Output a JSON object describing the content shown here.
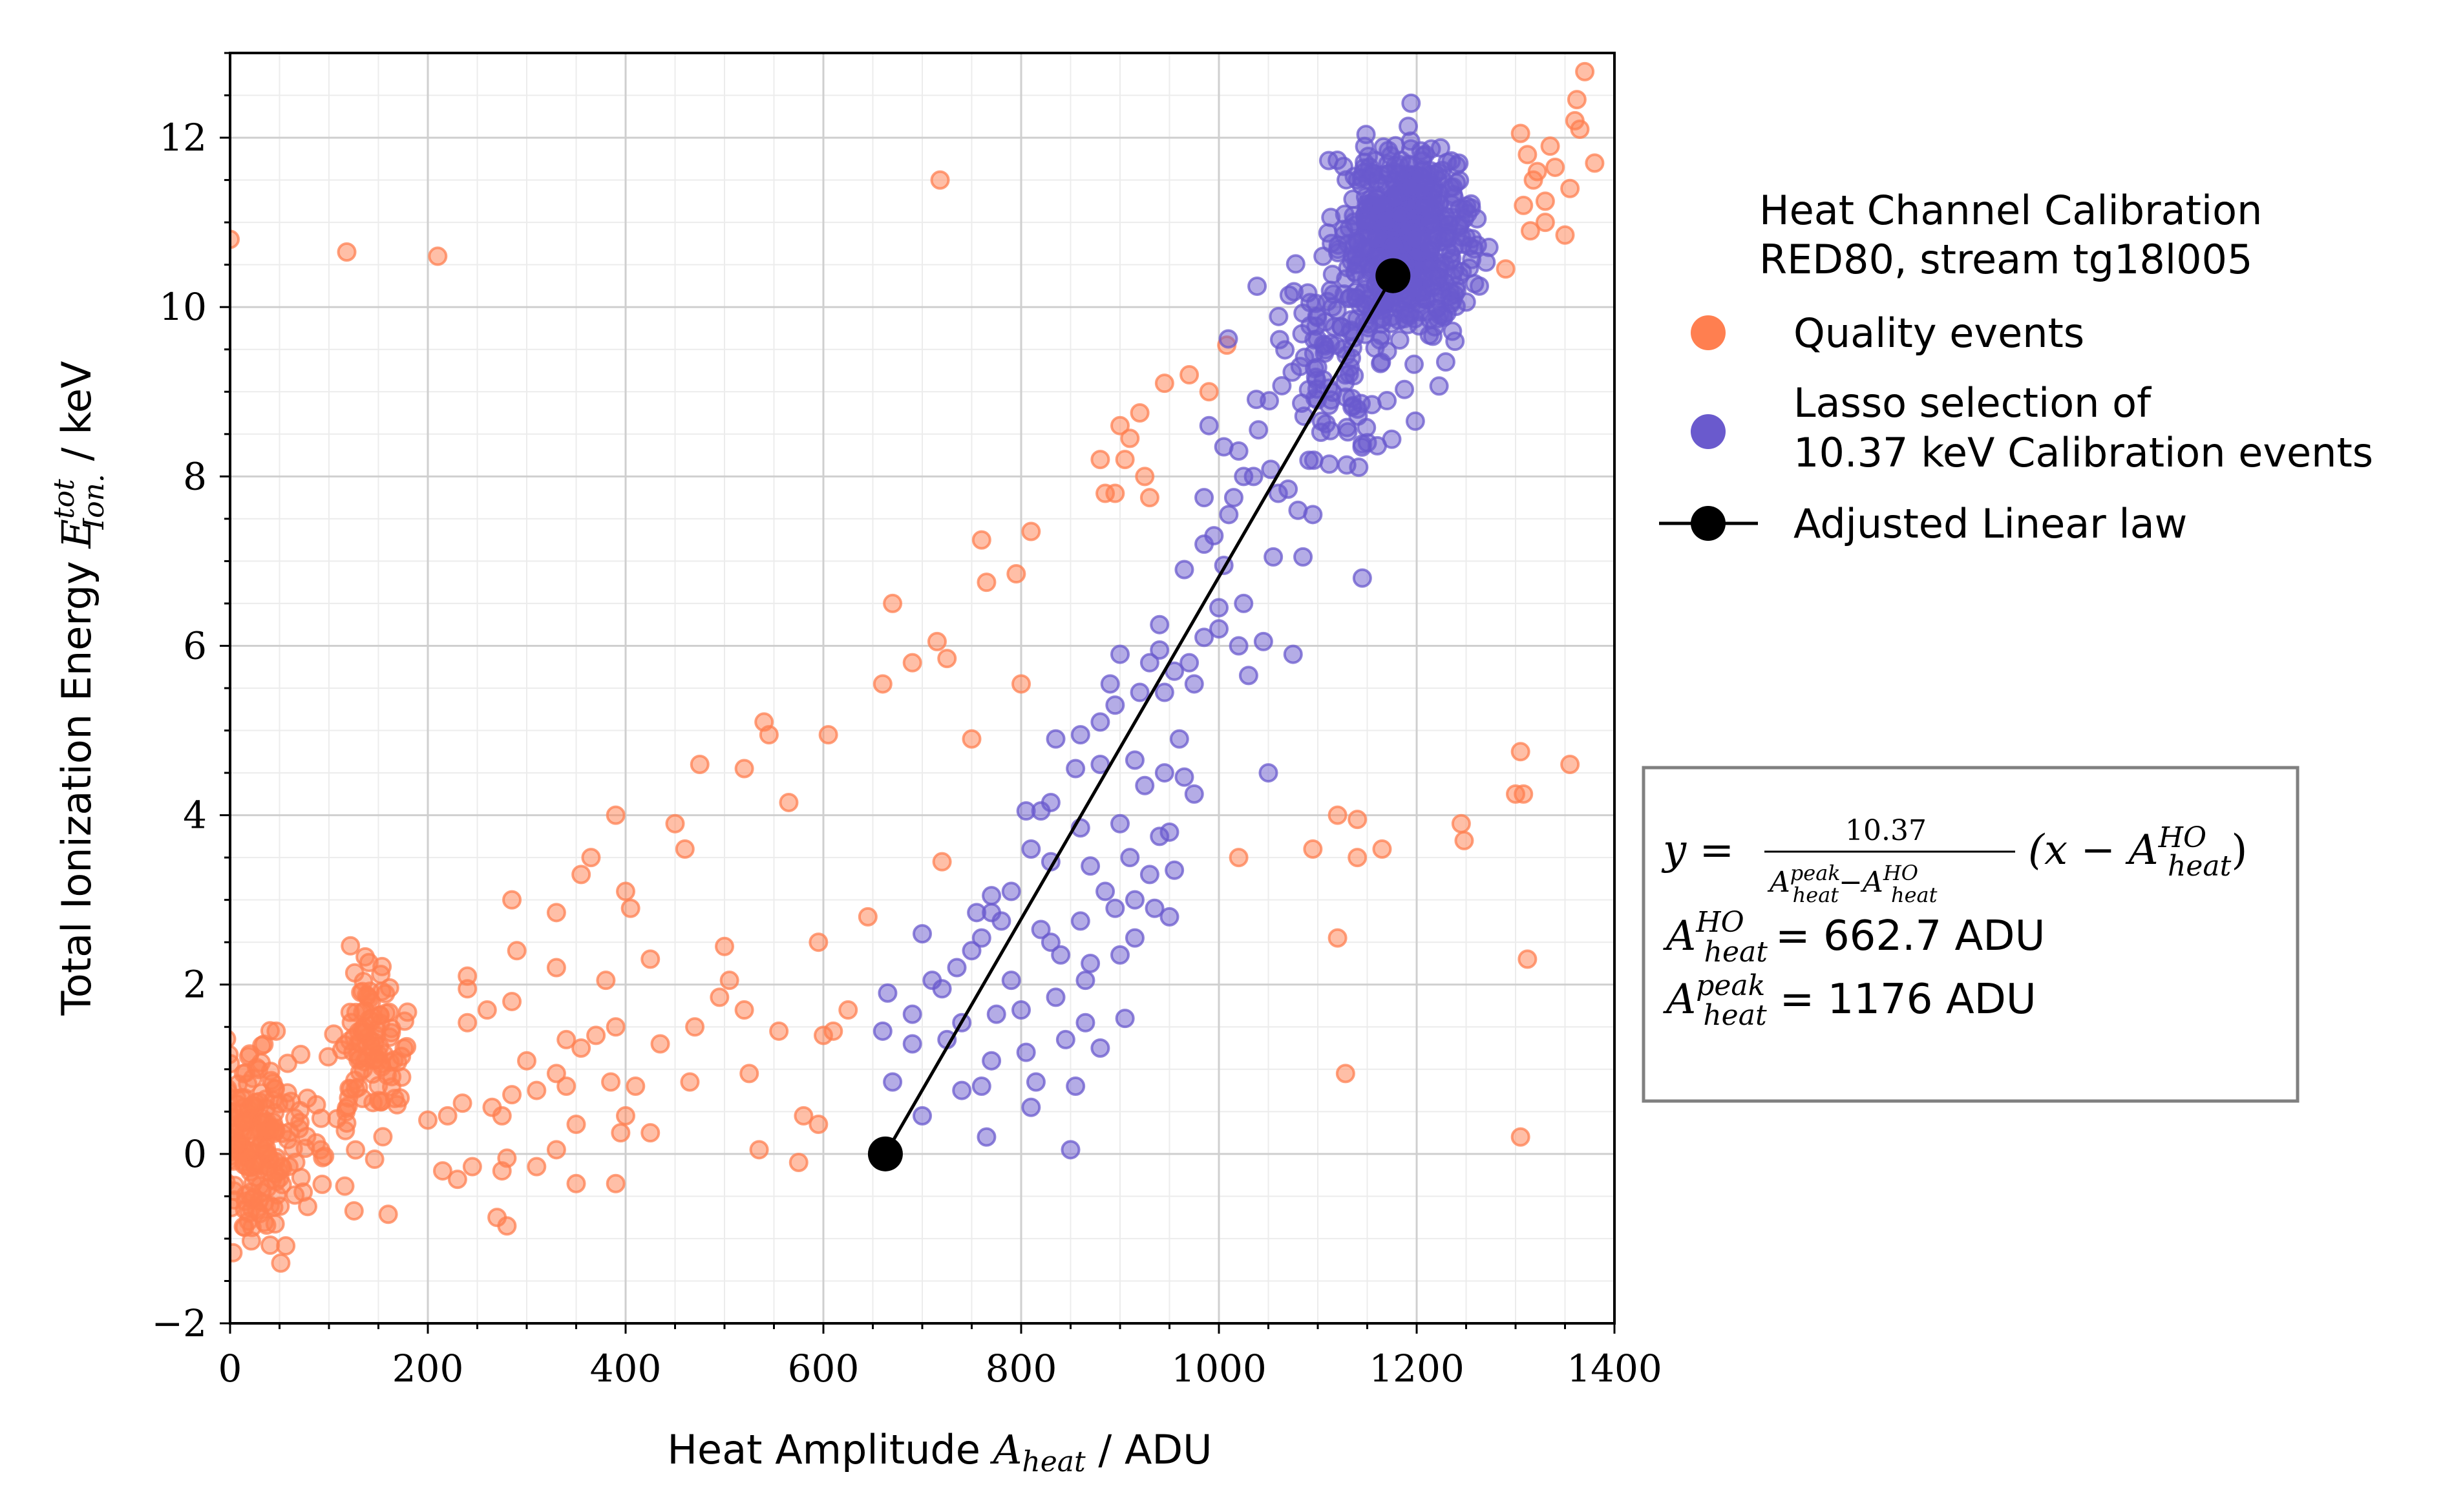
{
  "chart_data": {
    "type": "scatter",
    "xlabel": "Heat Amplitude A_heat / ADU",
    "ylabel": "Total Ionization Energy E^tot_Ion. / keV",
    "xlim": [
      0,
      1400
    ],
    "ylim": [
      -2,
      13
    ],
    "x_ticks": [
      "0",
      "200",
      "400",
      "600",
      "800",
      "1000",
      "1200",
      "1400"
    ],
    "y_ticks": [
      "−2",
      "0",
      "2",
      "4",
      "6",
      "8",
      "10",
      "12"
    ],
    "grid": "major and minor",
    "legend": {
      "title_line1": "Heat Channel Calibration",
      "title_line2": "RED80, stream tg18l005",
      "placement": "right"
    },
    "series": [
      {
        "name": "Quality events",
        "color": "#ff7f50",
        "clusters": [
          {
            "x_center": 25,
            "y_center": 0.1,
            "x_spread": 20,
            "y_spread": 0.55,
            "n": 170
          },
          {
            "x_center": 145,
            "y_center": 1.3,
            "x_spread": 16,
            "y_spread": 0.45,
            "n": 95
          },
          {
            "x_center": 75,
            "y_center": 0.2,
            "x_spread": 40,
            "y_spread": 0.45,
            "n": 45
          }
        ],
        "points": [
          [
            0,
            10.8
          ],
          [
            118,
            10.65
          ],
          [
            210,
            10.6
          ],
          [
            718,
            11.5
          ],
          [
            1305,
            12.05
          ],
          [
            1312,
            11.8
          ],
          [
            1318,
            11.5
          ],
          [
            1322,
            11.6
          ],
          [
            1308,
            11.2
          ],
          [
            1315,
            10.9
          ],
          [
            1330,
            11.0
          ],
          [
            1335,
            11.9
          ],
          [
            1340,
            11.65
          ],
          [
            1350,
            10.85
          ],
          [
            1355,
            11.4
          ],
          [
            1360,
            12.2
          ],
          [
            1365,
            12.1
          ],
          [
            1370,
            12.78
          ],
          [
            1362,
            12.45
          ],
          [
            1380,
            11.7
          ],
          [
            1290,
            10.45
          ],
          [
            1008,
            9.55
          ],
          [
            970,
            9.2
          ],
          [
            990,
            9.0
          ],
          [
            945,
            9.1
          ],
          [
            920,
            8.75
          ],
          [
            900,
            8.6
          ],
          [
            910,
            8.45
          ],
          [
            880,
            8.2
          ],
          [
            905,
            8.2
          ],
          [
            925,
            8.0
          ],
          [
            895,
            7.8
          ],
          [
            930,
            7.75
          ],
          [
            885,
            7.8
          ],
          [
            810,
            7.35
          ],
          [
            760,
            7.25
          ],
          [
            765,
            6.75
          ],
          [
            795,
            6.85
          ],
          [
            670,
            6.5
          ],
          [
            715,
            6.05
          ],
          [
            690,
            5.8
          ],
          [
            725,
            5.85
          ],
          [
            660,
            5.55
          ],
          [
            800,
            5.55
          ],
          [
            750,
            4.9
          ],
          [
            540,
            5.1
          ],
          [
            545,
            4.95
          ],
          [
            605,
            4.95
          ],
          [
            475,
            4.6
          ],
          [
            520,
            4.55
          ],
          [
            565,
            4.15
          ],
          [
            390,
            4.0
          ],
          [
            450,
            3.9
          ],
          [
            460,
            3.6
          ],
          [
            720,
            3.45
          ],
          [
            365,
            3.5
          ],
          [
            355,
            3.3
          ],
          [
            400,
            3.1
          ],
          [
            405,
            2.9
          ],
          [
            330,
            2.85
          ],
          [
            645,
            2.8
          ],
          [
            285,
            3.0
          ],
          [
            595,
            2.5
          ],
          [
            290,
            2.4
          ],
          [
            425,
            2.3
          ],
          [
            500,
            2.45
          ],
          [
            330,
            2.2
          ],
          [
            240,
            2.1
          ],
          [
            240,
            1.95
          ],
          [
            380,
            2.05
          ],
          [
            505,
            2.05
          ],
          [
            260,
            1.7
          ],
          [
            285,
            1.8
          ],
          [
            495,
            1.85
          ],
          [
            520,
            1.7
          ],
          [
            625,
            1.7
          ],
          [
            470,
            1.5
          ],
          [
            555,
            1.45
          ],
          [
            610,
            1.45
          ],
          [
            340,
            1.35
          ],
          [
            370,
            1.4
          ],
          [
            355,
            1.25
          ],
          [
            390,
            1.5
          ],
          [
            435,
            1.3
          ],
          [
            300,
            1.1
          ],
          [
            240,
            1.55
          ],
          [
            330,
            0.95
          ],
          [
            340,
            0.8
          ],
          [
            310,
            0.75
          ],
          [
            285,
            0.7
          ],
          [
            265,
            0.55
          ],
          [
            385,
            0.85
          ],
          [
            410,
            0.8
          ],
          [
            465,
            0.85
          ],
          [
            525,
            0.95
          ],
          [
            400,
            0.45
          ],
          [
            350,
            0.35
          ],
          [
            220,
            0.45
          ],
          [
            235,
            0.6
          ],
          [
            275,
            0.45
          ],
          [
            395,
            0.25
          ],
          [
            425,
            0.25
          ],
          [
            330,
            0.05
          ],
          [
            310,
            -0.15
          ],
          [
            280,
            -0.05
          ],
          [
            275,
            -0.2
          ],
          [
            535,
            0.05
          ],
          [
            580,
            0.45
          ],
          [
            595,
            0.35
          ],
          [
            575,
            -0.1
          ],
          [
            200,
            0.4
          ],
          [
            245,
            -0.15
          ],
          [
            230,
            -0.3
          ],
          [
            270,
            -0.75
          ],
          [
            280,
            -0.85
          ],
          [
            350,
            -0.35
          ],
          [
            390,
            -0.35
          ],
          [
            215,
            -0.2
          ],
          [
            600,
            1.4
          ],
          [
            1245,
            3.9
          ],
          [
            1248,
            3.7
          ],
          [
            1120,
            4.0
          ],
          [
            1140,
            3.95
          ],
          [
            1165,
            3.6
          ],
          [
            1140,
            3.5
          ],
          [
            1095,
            3.6
          ],
          [
            1020,
            3.5
          ],
          [
            1120,
            2.55
          ],
          [
            1128,
            0.95
          ],
          [
            1305,
            4.75
          ],
          [
            1300,
            4.25
          ],
          [
            1308,
            4.25
          ],
          [
            1355,
            4.6
          ],
          [
            1312,
            2.3
          ],
          [
            1305,
            0.2
          ],
          [
            1330,
            11.25
          ]
        ]
      },
      {
        "name": "Lasso selection of 10.37 keV Calibration events",
        "legend_line1": "Lasso selection of",
        "legend_line2": "10.37 keV Calibration events",
        "color": "#6a5acd",
        "clusters": [
          {
            "x_center": 1190,
            "y_center": 10.8,
            "x_spread": 32,
            "y_spread": 0.55,
            "n": 600
          },
          {
            "x_center": 1110,
            "y_center": 9.3,
            "x_spread": 40,
            "y_spread": 0.7,
            "n": 110
          }
        ],
        "points": [
          [
            665,
            1.9
          ],
          [
            660,
            1.45
          ],
          [
            690,
            1.3
          ],
          [
            670,
            0.85
          ],
          [
            700,
            0.45
          ],
          [
            720,
            1.95
          ],
          [
            740,
            1.55
          ],
          [
            735,
            2.2
          ],
          [
            700,
            2.6
          ],
          [
            710,
            2.05
          ],
          [
            760,
            2.55
          ],
          [
            770,
            2.85
          ],
          [
            775,
            1.65
          ],
          [
            770,
            1.1
          ],
          [
            760,
            0.8
          ],
          [
            765,
            0.2
          ],
          [
            790,
            2.05
          ],
          [
            800,
            1.7
          ],
          [
            805,
            1.2
          ],
          [
            815,
            0.85
          ],
          [
            810,
            0.55
          ],
          [
            830,
            2.5
          ],
          [
            835,
            1.85
          ],
          [
            845,
            1.35
          ],
          [
            855,
            0.8
          ],
          [
            850,
            0.05
          ],
          [
            860,
            2.75
          ],
          [
            870,
            2.25
          ],
          [
            865,
            1.55
          ],
          [
            880,
            1.25
          ],
          [
            895,
            2.9
          ],
          [
            900,
            2.35
          ],
          [
            905,
            1.6
          ],
          [
            910,
            3.5
          ],
          [
            900,
            3.9
          ],
          [
            915,
            2.55
          ],
          [
            930,
            3.3
          ],
          [
            940,
            3.75
          ],
          [
            950,
            3.8
          ],
          [
            955,
            3.35
          ],
          [
            965,
            4.45
          ],
          [
            975,
            4.25
          ],
          [
            960,
            4.9
          ],
          [
            945,
            4.5
          ],
          [
            925,
            4.35
          ],
          [
            915,
            4.65
          ],
          [
            880,
            4.6
          ],
          [
            895,
            5.3
          ],
          [
            880,
            5.1
          ],
          [
            860,
            4.95
          ],
          [
            835,
            4.9
          ],
          [
            855,
            4.55
          ],
          [
            830,
            4.15
          ],
          [
            820,
            4.05
          ],
          [
            805,
            4.05
          ],
          [
            810,
            3.6
          ],
          [
            830,
            3.45
          ],
          [
            790,
            3.1
          ],
          [
            780,
            2.75
          ],
          [
            770,
            3.05
          ],
          [
            755,
            2.85
          ],
          [
            750,
            2.4
          ],
          [
            920,
            5.45
          ],
          [
            930,
            5.8
          ],
          [
            940,
            5.95
          ],
          [
            955,
            5.7
          ],
          [
            970,
            5.8
          ],
          [
            985,
            6.1
          ],
          [
            1000,
            6.45
          ],
          [
            1005,
            6.95
          ],
          [
            995,
            7.3
          ],
          [
            1010,
            7.55
          ],
          [
            1015,
            7.75
          ],
          [
            1025,
            8.0
          ],
          [
            1040,
            8.55
          ],
          [
            1035,
            8.0
          ],
          [
            1020,
            8.3
          ],
          [
            1025,
            6.5
          ],
          [
            1020,
            6.0
          ],
          [
            1030,
            5.65
          ],
          [
            1045,
            6.05
          ],
          [
            1055,
            7.05
          ],
          [
            1060,
            7.8
          ],
          [
            1070,
            7.85
          ],
          [
            1080,
            7.6
          ],
          [
            1095,
            7.55
          ],
          [
            1085,
            7.05
          ],
          [
            1075,
            5.9
          ],
          [
            1145,
            6.8
          ],
          [
            1050,
            4.5
          ],
          [
            965,
            6.9
          ],
          [
            985,
            7.2
          ],
          [
            940,
            6.25
          ],
          [
            945,
            5.45
          ],
          [
            1000,
            6.2
          ],
          [
            975,
            5.55
          ],
          [
            900,
            5.9
          ],
          [
            890,
            5.55
          ],
          [
            690,
            1.65
          ],
          [
            725,
            1.35
          ],
          [
            740,
            0.75
          ],
          [
            860,
            3.85
          ],
          [
            870,
            3.4
          ],
          [
            885,
            3.1
          ],
          [
            915,
            3.0
          ],
          [
            935,
            2.9
          ],
          [
            950,
            2.8
          ],
          [
            865,
            2.05
          ],
          [
            820,
            2.65
          ],
          [
            840,
            2.35
          ],
          [
            985,
            7.75
          ],
          [
            1005,
            8.35
          ],
          [
            990,
            8.6
          ]
        ]
      },
      {
        "name": "Adjusted Linear law",
        "color": "#000000",
        "x": [
          662.7,
          1176
        ],
        "y": [
          0,
          10.37
        ]
      }
    ],
    "annotation": {
      "formula_lhs": "y =",
      "formula_num": "10.37",
      "formula_den_a": "A",
      "formula_den_a_sup": "peak",
      "formula_den_a_sub": "heat",
      "formula_den_minus": "−",
      "formula_den_b": "A",
      "formula_den_b_sup": "HO",
      "formula_den_b_sub": "heat",
      "formula_rhs": "(x − A",
      "formula_rhs_sup": "HO",
      "formula_rhs_sub": "heat",
      "formula_rhs_close": ")",
      "line2_sym": "A",
      "line2_sup": "HO",
      "line2_sub": "heat",
      "line2_val": "= 662.7 ADU",
      "line3_sym": "A",
      "line3_sup": "peak",
      "line3_sub": "heat",
      "line3_val": "= 1176 ADU"
    }
  },
  "labels": {
    "x_main": "Heat Amplitude ",
    "x_sym": "A",
    "x_sub": "heat",
    "x_unit": " / ADU",
    "y_main": "Total Ionization Energy ",
    "y_sym": "E",
    "y_sup": "tot",
    "y_sub": "Ion.",
    "y_unit": "  / keV"
  }
}
